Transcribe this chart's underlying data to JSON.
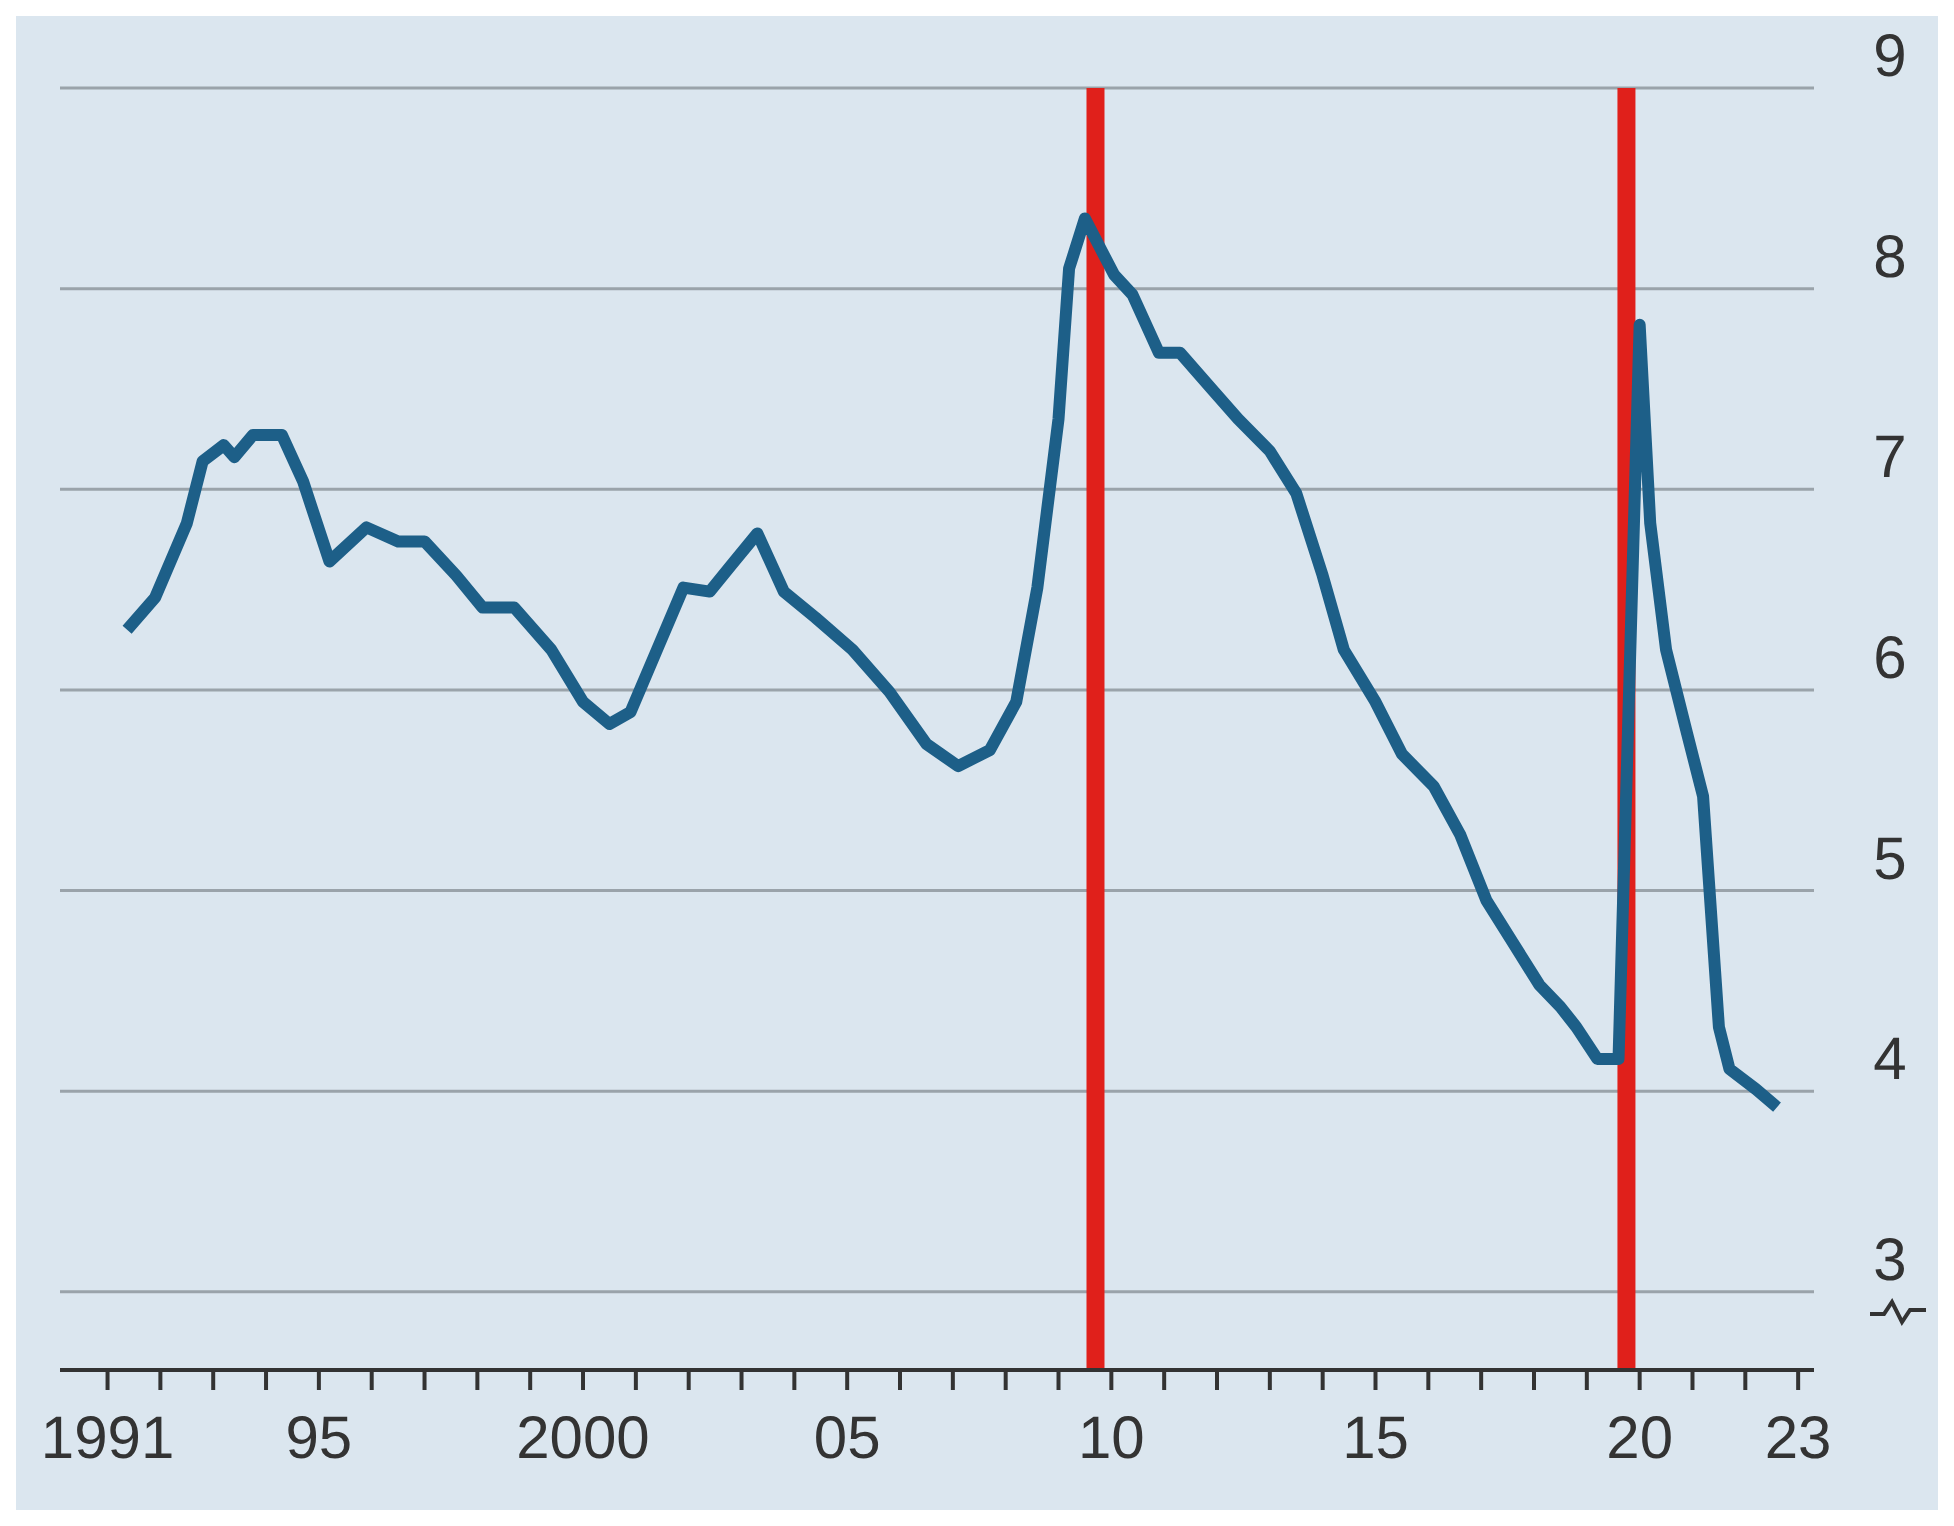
{
  "chart_data": {
    "type": "line",
    "x": [
      1991.37,
      1991.9,
      1992.5,
      1992.8,
      1993.2,
      1993.4,
      1993.75,
      1994.3,
      1994.7,
      1995.2,
      1995.9,
      1996.5,
      1997.0,
      1997.6,
      1998.1,
      1998.7,
      1999.4,
      2000.0,
      2000.5,
      2000.9,
      2001.4,
      2001.9,
      2002.4,
      2002.8,
      2003.3,
      2003.8,
      2004.4,
      2005.1,
      2005.8,
      2006.5,
      2007.1,
      2007.7,
      2008.2,
      2008.6,
      2009.0,
      2009.2,
      2009.5,
      2010.05,
      2010.4,
      2010.9,
      2011.3,
      2011.9,
      2012.4,
      2013.0,
      2013.5,
      2014.0,
      2014.4,
      2015.0,
      2015.5,
      2016.1,
      2016.6,
      2017.1,
      2017.6,
      2018.1,
      2018.5,
      2018.8,
      2019.2,
      2019.6,
      2020.0,
      2020.2,
      2020.5,
      2020.9,
      2021.2,
      2021.5,
      2021.7,
      2022.2,
      2022.6
    ],
    "series": [
      {
        "color": "#1d5f88",
        "values": [
          6.3,
          6.46,
          6.83,
          7.14,
          7.22,
          7.16,
          7.27,
          7.27,
          7.04,
          6.64,
          6.81,
          6.74,
          6.74,
          6.57,
          6.41,
          6.41,
          6.2,
          5.94,
          5.83,
          5.89,
          6.2,
          6.51,
          6.49,
          6.62,
          6.78,
          6.49,
          6.36,
          6.2,
          5.99,
          5.73,
          5.62,
          5.7,
          5.94,
          6.51,
          7.35,
          8.1,
          8.35,
          8.07,
          7.97,
          7.68,
          7.68,
          7.5,
          7.35,
          7.19,
          6.98,
          6.57,
          6.2,
          5.94,
          5.68,
          5.52,
          5.28,
          4.95,
          4.74,
          4.53,
          4.42,
          4.32,
          4.16,
          4.16,
          7.82,
          6.83,
          6.2,
          5.78,
          5.47,
          4.32,
          4.11,
          4.01,
          3.92
        ]
      }
    ],
    "xlim": [
      1990.1,
      2023.3
    ],
    "xticks": [
      {
        "value": 1991,
        "label": "1991"
      },
      {
        "value": 1992,
        "label": null
      },
      {
        "value": 1993,
        "label": null
      },
      {
        "value": 1994,
        "label": null
      },
      {
        "value": 1995,
        "label": "95"
      },
      {
        "value": 1996,
        "label": null
      },
      {
        "value": 1997,
        "label": null
      },
      {
        "value": 1998,
        "label": null
      },
      {
        "value": 1999,
        "label": null
      },
      {
        "value": 2000,
        "label": "2000"
      },
      {
        "value": 2001,
        "label": null
      },
      {
        "value": 2002,
        "label": null
      },
      {
        "value": 2003,
        "label": null
      },
      {
        "value": 2004,
        "label": null
      },
      {
        "value": 2005,
        "label": "05"
      },
      {
        "value": 2006,
        "label": null
      },
      {
        "value": 2007,
        "label": null
      },
      {
        "value": 2008,
        "label": null
      },
      {
        "value": 2009,
        "label": null
      },
      {
        "value": 2010,
        "label": "10"
      },
      {
        "value": 2011,
        "label": null
      },
      {
        "value": 2012,
        "label": null
      },
      {
        "value": 2013,
        "label": null
      },
      {
        "value": 2014,
        "label": null
      },
      {
        "value": 2015,
        "label": "15"
      },
      {
        "value": 2016,
        "label": null
      },
      {
        "value": 2017,
        "label": null
      },
      {
        "value": 2018,
        "label": null
      },
      {
        "value": 2019,
        "label": null
      },
      {
        "value": 2020,
        "label": "20"
      },
      {
        "value": 2021,
        "label": null
      },
      {
        "value": 2022,
        "label": null
      },
      {
        "value": 2023,
        "label": "23"
      }
    ],
    "ylim": [
      2.61,
      9
    ],
    "yticks": [
      3,
      4,
      5,
      6,
      7,
      8,
      9
    ],
    "grid": "y",
    "ref_lines": [
      {
        "axis": "x",
        "value": 2009.7,
        "color": "#e0201b"
      },
      {
        "axis": "x",
        "value": 2019.75,
        "color": "#e0201b"
      }
    ]
  }
}
